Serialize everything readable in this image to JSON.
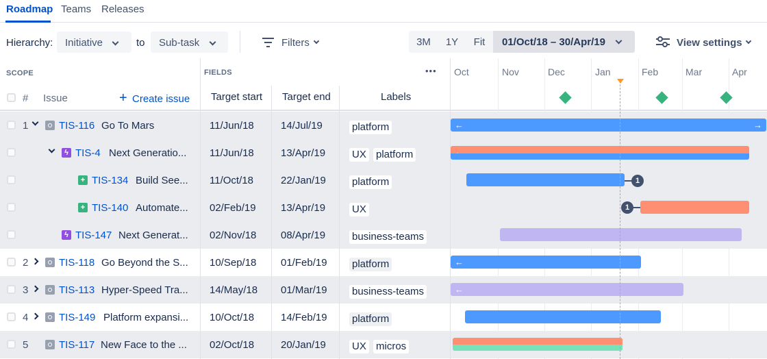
{
  "tabs": [
    "Roadmap",
    "Teams",
    "Releases"
  ],
  "toolbar": {
    "hierarchy_label": "Hierarchy:",
    "from_value": "Initiative",
    "to_label": "to",
    "to_value": "Sub-task",
    "filters_label": "Filters",
    "ranges": [
      "3M",
      "1Y",
      "Fit"
    ],
    "date_range": "01/Oct/18 – 30/Apr/19",
    "view_settings": "View settings"
  },
  "header": {
    "scope": "SCOPE",
    "fields": "FIELDS",
    "more": "•••",
    "hash": "#",
    "issue": "Issue",
    "create_issue": "Create issue",
    "target_start": "Target start",
    "target_end": "Target end",
    "labels": "Labels"
  },
  "months": [
    "Oct",
    "Nov",
    "Dec",
    "Jan",
    "Feb",
    "Mar",
    "Apr"
  ],
  "rows": [
    {
      "num": "1",
      "key": "TIS-116",
      "summary": "Go To Mars",
      "start": "11/Jun/18",
      "end": "14/Jul/19",
      "labels": [
        "platform"
      ],
      "type": "initiative"
    },
    {
      "num": "",
      "key": "TIS-4",
      "summary": "Next Generatio...",
      "start": "11/Jun/18",
      "end": "13/Apr/19",
      "labels": [
        "UX",
        "platform"
      ],
      "type": "epic"
    },
    {
      "num": "",
      "key": "TIS-134",
      "summary": "Build See...",
      "start": "11/Oct/18",
      "end": "22/Jan/19",
      "labels": [
        "platform"
      ],
      "type": "story"
    },
    {
      "num": "",
      "key": "TIS-140",
      "summary": "Automate...",
      "start": "02/Feb/19",
      "end": "13/Apr/19",
      "labels": [
        "UX"
      ],
      "type": "story"
    },
    {
      "num": "",
      "key": "TIS-147",
      "summary": "Next Generat...",
      "start": "02/Nov/18",
      "end": "08/Apr/19",
      "labels": [
        "business-teams"
      ],
      "type": "epic"
    },
    {
      "num": "2",
      "key": "TIS-118",
      "summary": "Go Beyond the S...",
      "start": "10/Sep/18",
      "end": "01/Feb/19",
      "labels": [
        "platform"
      ],
      "type": "initiative"
    },
    {
      "num": "3",
      "key": "TIS-113",
      "summary": "Hyper-Speed Tra...",
      "start": "14/May/18",
      "end": "01/Mar/19",
      "labels": [
        "business-teams"
      ],
      "type": "initiative"
    },
    {
      "num": "4",
      "key": "TIS-149",
      "summary": "Platform expansi...",
      "start": "10/Oct/18",
      "end": "14/Feb/19",
      "labels": [
        "platform"
      ],
      "type": "initiative"
    },
    {
      "num": "5",
      "key": "TIS-117",
      "summary": "New Face to the ...",
      "start": "02/Oct/18",
      "end": "20/Jan/19",
      "labels": [
        "UX",
        "micros"
      ],
      "type": "initiative"
    }
  ],
  "dependencies": [
    "1",
    "1"
  ],
  "colors": {
    "accent": "#0052cc",
    "bar_blue": "#4c9aff",
    "bar_red": "#ff8f73",
    "bar_purple": "#c0b6f2",
    "bar_green": "#79e2b8",
    "milestone": "#36b37e",
    "today": "#ff991f"
  }
}
